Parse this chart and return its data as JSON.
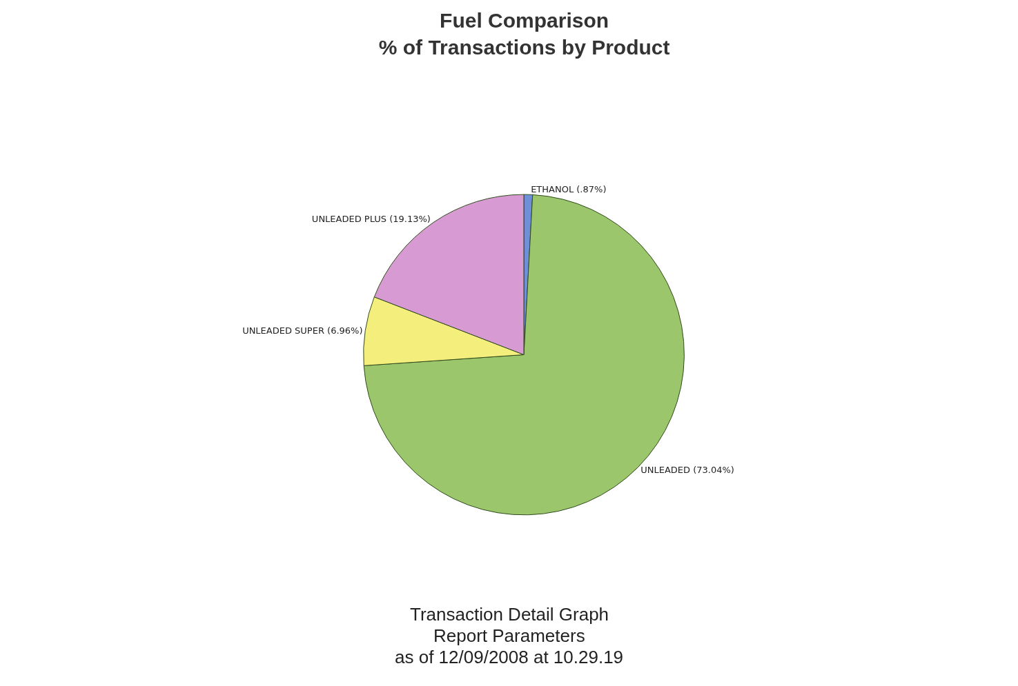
{
  "chart_data": {
    "type": "pie",
    "title": "Fuel Comparison",
    "subtitle": "% of Transactions by Product",
    "categories": [
      "ETHANOL",
      "UNLEADED",
      "UNLEADED SUPER",
      "UNLEADED PLUS"
    ],
    "values": [
      0.87,
      73.04,
      6.96,
      19.13
    ],
    "value_labels": [
      "(.87%)",
      "(73.04%)",
      "(6.96%)",
      "(19.13%)"
    ],
    "colors": [
      "#6f8fd8",
      "#9bc66b",
      "#f4ee7c",
      "#d79ad2"
    ],
    "legend": false,
    "annotations": [
      "Transaction Detail Graph",
      "Report Parameters",
      "as of 12/09/2008 at 10.29.19"
    ]
  }
}
